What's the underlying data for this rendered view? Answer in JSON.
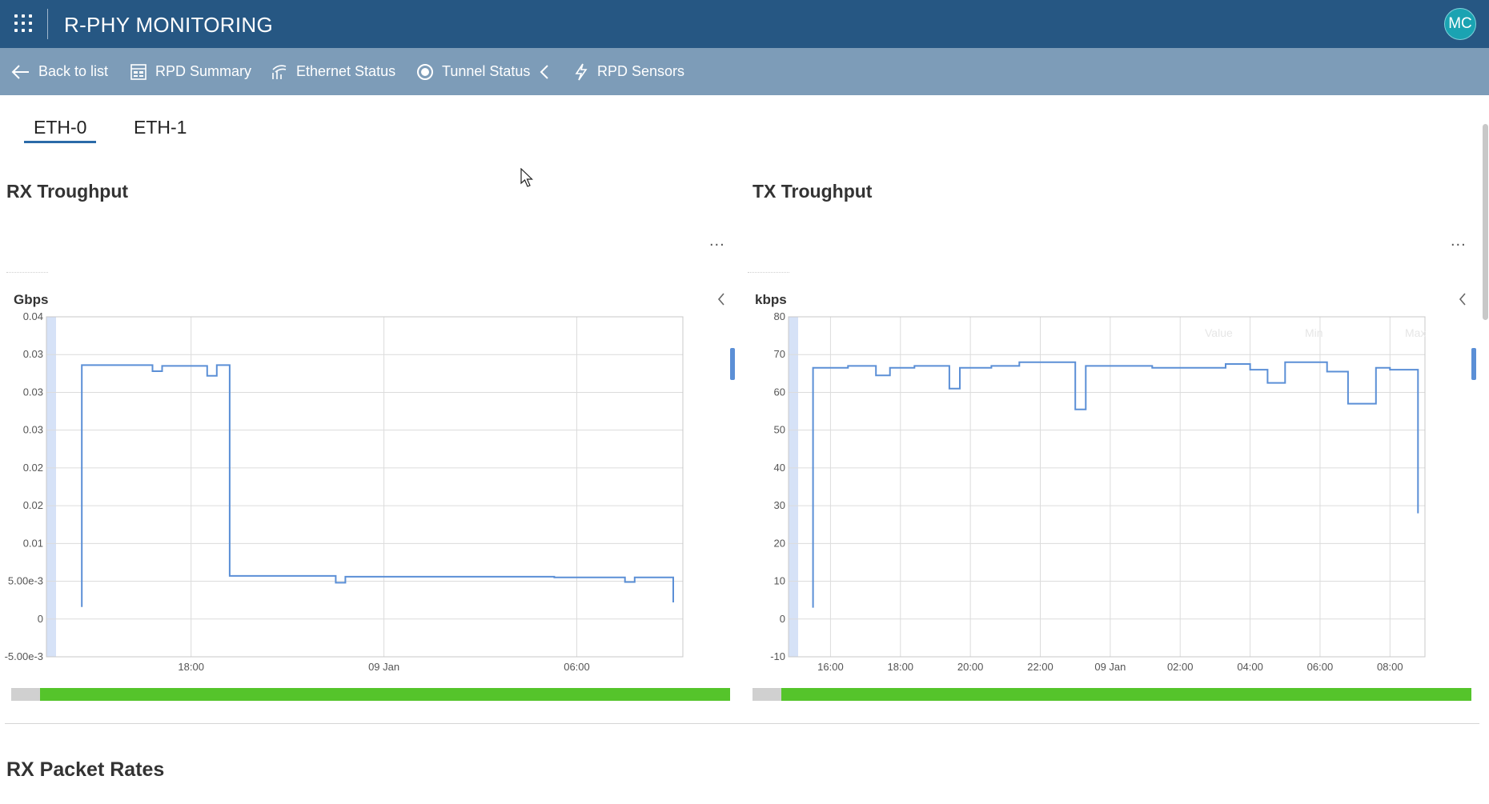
{
  "app": {
    "title": "R-PHY MONITORING",
    "user_initials": "MC"
  },
  "nav": {
    "back": "Back to list",
    "rpd_summary": "RPD Summary",
    "ethernet_status": "Ethernet Status",
    "tunnel_status": "Tunnel Status",
    "rpd_sensors": "RPD Sensors"
  },
  "tabs": [
    {
      "label": "ETH-0",
      "active": true
    },
    {
      "label": "ETH-1",
      "active": false
    }
  ],
  "panels": {
    "rx": {
      "title": "RX Troughput",
      "more": "...",
      "unit": "Gbps"
    },
    "tx": {
      "title": "TX Troughput",
      "more": "...",
      "unit": "kbps",
      "legend": [
        "Value",
        "Min",
        "Max"
      ]
    }
  },
  "next_section": {
    "title": "RX Packet Rates"
  },
  "colors": {
    "topbar": "#265783",
    "subnav": "#7d9cb8",
    "line": "#5b8fd6",
    "range_fill": "#55c42b"
  },
  "chart_data": [
    {
      "type": "line",
      "title": "RX Troughput",
      "ylabel": "Gbps",
      "ylim": [
        -0.005,
        0.04
      ],
      "yticks": [
        "0.04",
        "0.03",
        "0.03",
        "0.03",
        "0.02",
        "0.02",
        "0.01",
        "5.00e-3",
        "0",
        "-5.00e-3"
      ],
      "ytick_values": [
        0.04,
        0.035,
        0.03,
        0.025,
        0.02,
        0.015,
        0.01,
        0.005,
        0,
        -0.005
      ],
      "xlim_hours": [
        13.5,
        33.3
      ],
      "xticks": [
        {
          "label": "18:00",
          "hour": 18
        },
        {
          "label": "09 Jan",
          "hour": 24
        },
        {
          "label": "06:00",
          "hour": 30
        }
      ],
      "grid": true,
      "series": [
        {
          "hour": [
            14.6,
            14.6,
            16.8,
            16.8,
            17.1,
            17.1,
            18.5,
            18.5,
            18.8,
            18.8,
            19.2,
            19.2,
            22.5,
            22.5,
            22.8,
            22.8,
            29.3,
            29.3,
            31.5,
            31.5,
            31.8,
            31.8,
            33.0,
            33.0
          ],
          "value": [
            0.0016,
            0.0336,
            0.0336,
            0.0328,
            0.0328,
            0.0335,
            0.0335,
            0.0322,
            0.0322,
            0.0336,
            0.0336,
            0.0057,
            0.0057,
            0.0048,
            0.0048,
            0.0056,
            0.0056,
            0.0055,
            0.0055,
            0.0049,
            0.0049,
            0.0055,
            0.0055,
            0.0022
          ]
        }
      ]
    },
    {
      "type": "line",
      "title": "TX Troughput",
      "ylabel": "kbps",
      "ylim": [
        -10,
        80
      ],
      "yticks": [
        "80",
        "70",
        "60",
        "50",
        "40",
        "30",
        "20",
        "10",
        "0",
        "-10"
      ],
      "ytick_values": [
        80,
        70,
        60,
        50,
        40,
        30,
        20,
        10,
        0,
        -10
      ],
      "xlim_hours": [
        14.8,
        33.0
      ],
      "xticks": [
        {
          "label": "16:00",
          "hour": 16
        },
        {
          "label": "18:00",
          "hour": 18
        },
        {
          "label": "20:00",
          "hour": 20
        },
        {
          "label": "22:00",
          "hour": 22
        },
        {
          "label": "09 Jan",
          "hour": 24
        },
        {
          "label": "02:00",
          "hour": 26
        },
        {
          "label": "04:00",
          "hour": 28
        },
        {
          "label": "06:00",
          "hour": 30
        },
        {
          "label": "08:00",
          "hour": 32
        }
      ],
      "grid": true,
      "series": [
        {
          "hour": [
            15.5,
            15.5,
            16.5,
            16.5,
            17.3,
            17.3,
            17.7,
            17.7,
            18.4,
            18.4,
            19.4,
            19.4,
            19.7,
            19.7,
            20.6,
            20.6,
            21.4,
            21.4,
            23.0,
            23.0,
            23.3,
            23.3,
            25.2,
            25.2,
            27.3,
            27.3,
            28.0,
            28.0,
            28.5,
            28.5,
            29.0,
            29.0,
            30.2,
            30.2,
            30.8,
            30.8,
            31.6,
            31.6,
            32.0,
            32.0,
            32.8,
            32.8
          ],
          "value": [
            3,
            66.5,
            66.5,
            67,
            67,
            64.5,
            64.5,
            66.5,
            66.5,
            67,
            67,
            61,
            61,
            66.5,
            66.5,
            67,
            67,
            68,
            68,
            55.5,
            55.5,
            67,
            67,
            66.5,
            66.5,
            67.5,
            67.5,
            66,
            66,
            62.5,
            62.5,
            68,
            68,
            65.5,
            65.5,
            57,
            57,
            66.5,
            66.5,
            66,
            66,
            28
          ]
        }
      ]
    }
  ]
}
